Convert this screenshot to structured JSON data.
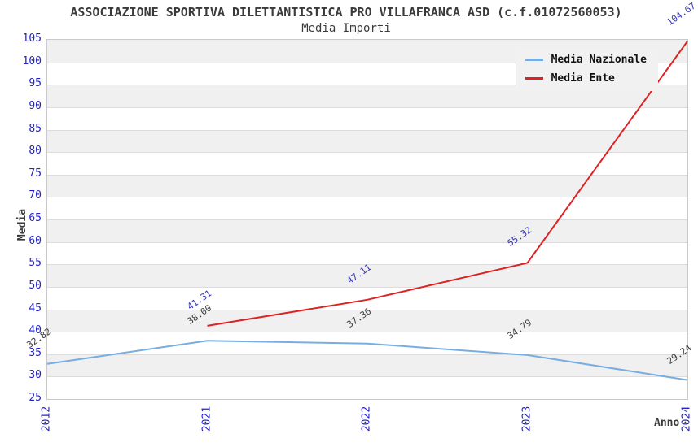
{
  "title": "ASSOCIAZIONE SPORTIVA DILETTANTISTICA PRO VILLAFRANCA ASD (c.f.01072560053)",
  "subtitle": "Media Importi",
  "chart_data": {
    "type": "line",
    "categories": [
      "2012",
      "2021",
      "2022",
      "2023",
      "2024"
    ],
    "series": [
      {
        "name": "Media Nazionale",
        "color": "#77ade0",
        "label_color": "#3c3c3c",
        "x": [
          "2012",
          "2021",
          "2022",
          "2023",
          "2024"
        ],
        "values": [
          32.82,
          38.0,
          37.36,
          34.79,
          29.24
        ],
        "labels": [
          "32.82",
          "38.00",
          "37.36",
          "34.79",
          "29.24"
        ]
      },
      {
        "name": "Media Ente",
        "color": "#dd2222",
        "label_color": "#3434b4",
        "x": [
          "2021",
          "2022",
          "2023",
          "2024"
        ],
        "values": [
          41.31,
          47.11,
          55.32,
          104.67
        ],
        "labels": [
          "41.31",
          "47.11",
          "55.32",
          "104.67"
        ]
      }
    ],
    "xlabel": "Anno",
    "ylabel": "Media",
    "ylim": [
      25,
      105
    ],
    "yticks": [
      25,
      30,
      35,
      40,
      45,
      50,
      55,
      60,
      65,
      70,
      75,
      80,
      85,
      90,
      95,
      100,
      105
    ],
    "grid": "horizontal-bands",
    "band_fill": "#f0f0f0",
    "tick_color": "#2222cc",
    "legend_position": "top-right"
  }
}
